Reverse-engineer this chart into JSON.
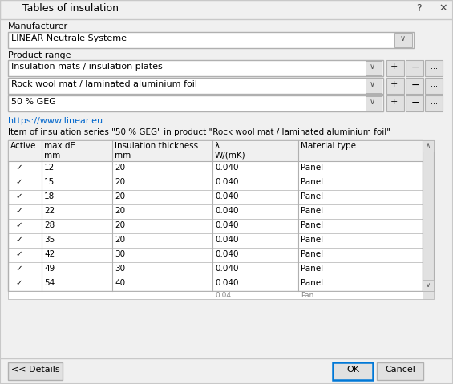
{
  "title": "Tables of insulation",
  "bg_color": "#f0f0f0",
  "manufacturer_label": "Manufacturer",
  "manufacturer_value": "LINEAR Neutrale Systeme",
  "product_range_label": "Product range",
  "dropdown1": "Insulation mats / insulation plates",
  "dropdown2": "Rock wool mat / laminated aluminium foil",
  "dropdown3": "50 % GEG",
  "link": "https://www.linear.eu",
  "item_label": "Item of insulation series \"50 % GEG\" in product \"Rock wool mat / laminated aluminium foil\"",
  "col_headers": [
    "Active",
    "max dE\nmm",
    "Insulation thickness\nmm",
    "λ\nW/(mK)",
    "Material type"
  ],
  "table_data": [
    [
      "✓",
      "12",
      "20",
      "0.040",
      "Panel"
    ],
    [
      "✓",
      "15",
      "20",
      "0.040",
      "Panel"
    ],
    [
      "✓",
      "18",
      "20",
      "0.040",
      "Panel"
    ],
    [
      "✓",
      "22",
      "20",
      "0.040",
      "Panel"
    ],
    [
      "✓",
      "28",
      "20",
      "0.040",
      "Panel"
    ],
    [
      "✓",
      "35",
      "20",
      "0.040",
      "Panel"
    ],
    [
      "✓",
      "42",
      "30",
      "0.040",
      "Panel"
    ],
    [
      "✓",
      "49",
      "30",
      "0.040",
      "Panel"
    ],
    [
      "✓",
      "54",
      "40",
      "0.040",
      "Panel"
    ]
  ],
  "btn_details": "<< Details",
  "btn_ok": "OK",
  "btn_cancel": "Cancel",
  "white": "#ffffff",
  "light_gray": "#e1e1e1",
  "mid_gray": "#c8c8c8",
  "dark_gray": "#a0a0a0",
  "border_gray": "#b0b0b0",
  "text_color": "#000000",
  "link_color": "#0066cc",
  "blue_border": "#0078d7",
  "header_bg": "#f0f0f0",
  "titlebar_bg": "#f0f0f0",
  "icon_green1": "#3c7a5a",
  "icon_green2": "#5a9a70",
  "icon_teal": "#6ab0a0"
}
